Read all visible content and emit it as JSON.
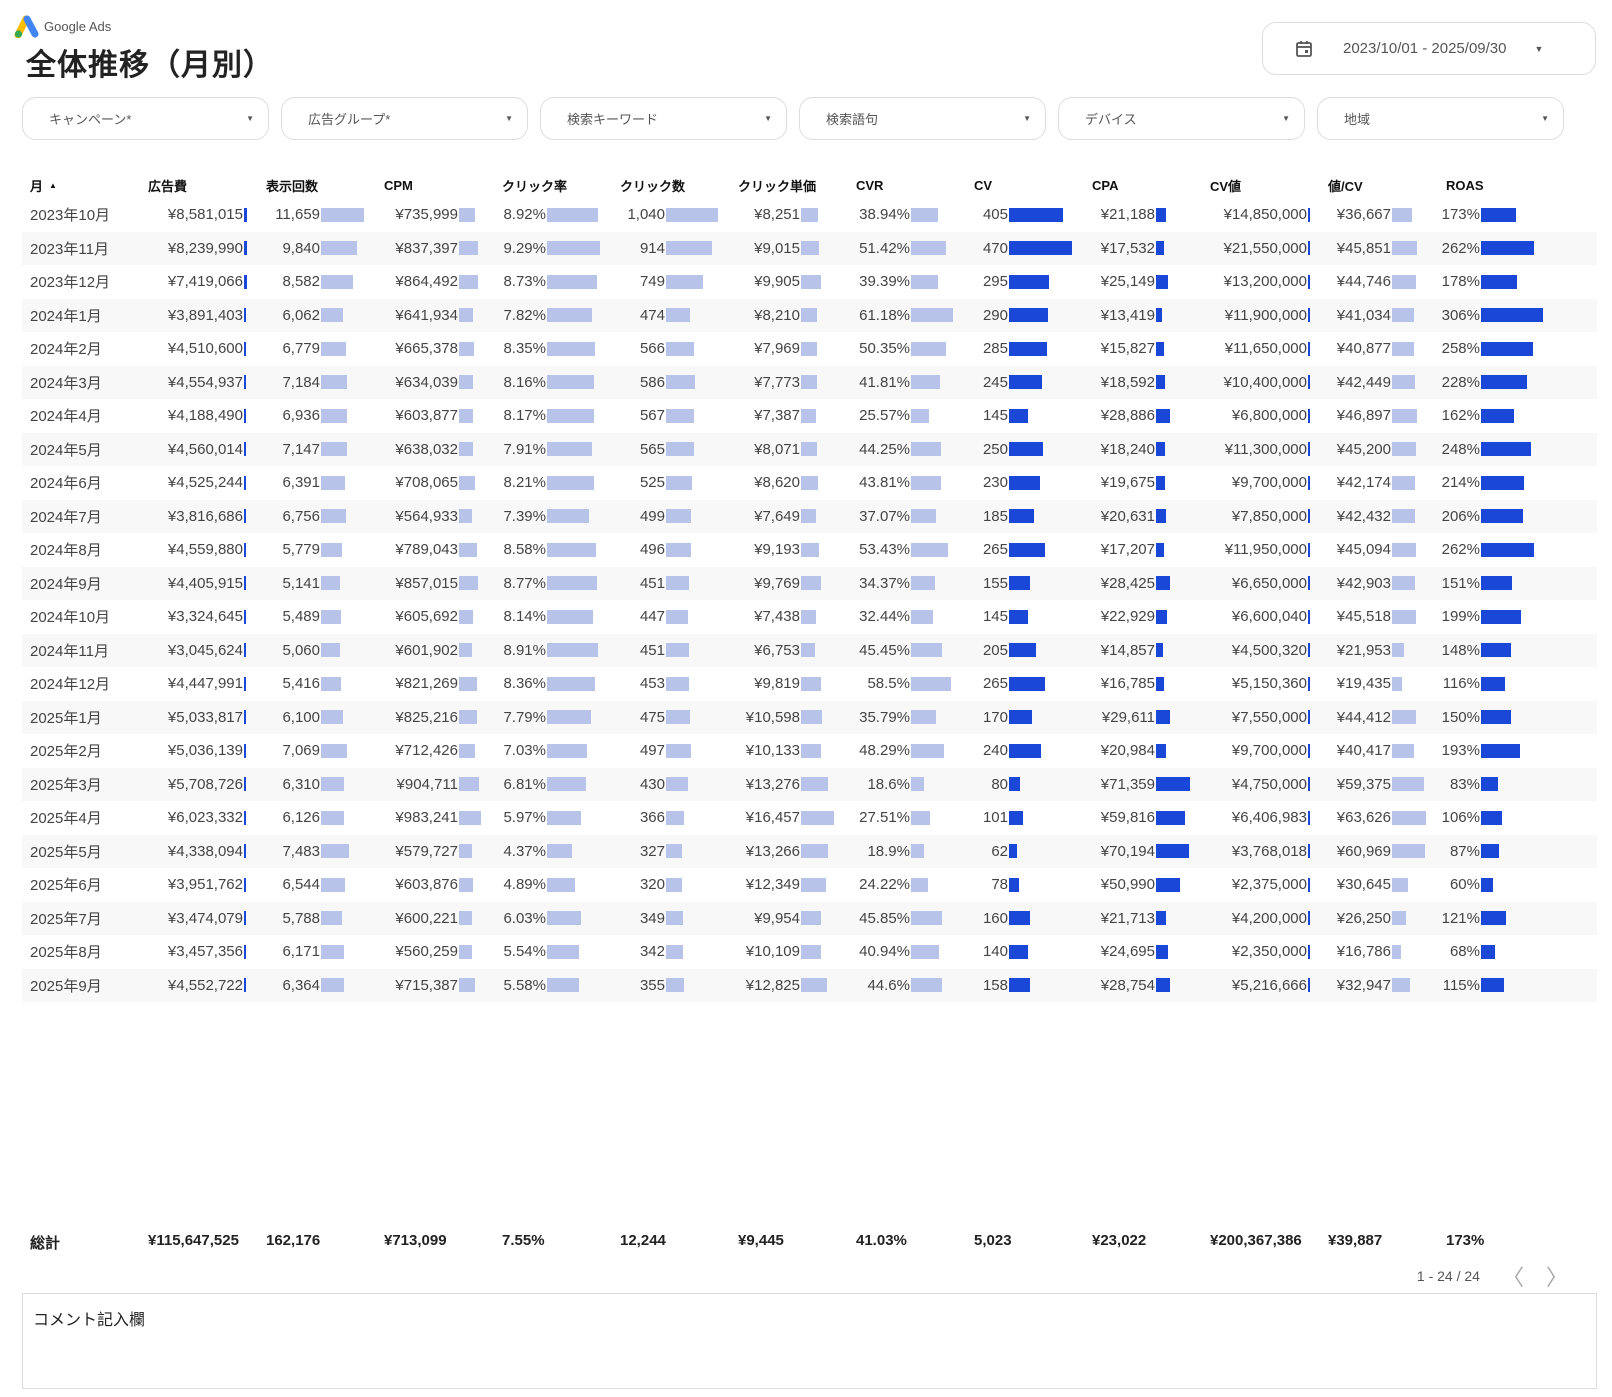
{
  "header": {
    "logo_text": "Google Ads",
    "title": "全体推移（月別）",
    "date_range": "2023/10/01 - 2025/09/30"
  },
  "filters": [
    "キャンペーン*",
    "広告グループ*",
    "検索キーワード",
    "検索語句",
    "デバイス",
    "地域"
  ],
  "columns": [
    "月",
    "広告費",
    "表示回数",
    "CPM",
    "クリック率",
    "クリック数",
    "クリック単価",
    "CVR",
    "CV",
    "CPA",
    "CV値",
    "値/CV",
    "ROAS"
  ],
  "sort_indicator": "▲",
  "bar_colors": {
    "light": "#b8c3ea",
    "dark": "#1a47d8"
  },
  "rows": [
    [
      "2023年10月",
      "¥8,581,015",
      "11,659",
      "¥735,999",
      "8.92%",
      "1,040",
      "¥8,251",
      "38.94%",
      "405",
      "¥21,188",
      "¥14,850,000",
      "¥36,667",
      "173%"
    ],
    [
      "2023年11月",
      "¥8,239,990",
      "9,840",
      "¥837,397",
      "9.29%",
      "914",
      "¥9,015",
      "51.42%",
      "470",
      "¥17,532",
      "¥21,550,000",
      "¥45,851",
      "262%"
    ],
    [
      "2023年12月",
      "¥7,419,066",
      "8,582",
      "¥864,492",
      "8.73%",
      "749",
      "¥9,905",
      "39.39%",
      "295",
      "¥25,149",
      "¥13,200,000",
      "¥44,746",
      "178%"
    ],
    [
      "2024年1月",
      "¥3,891,403",
      "6,062",
      "¥641,934",
      "7.82%",
      "474",
      "¥8,210",
      "61.18%",
      "290",
      "¥13,419",
      "¥11,900,000",
      "¥41,034",
      "306%"
    ],
    [
      "2024年2月",
      "¥4,510,600",
      "6,779",
      "¥665,378",
      "8.35%",
      "566",
      "¥7,969",
      "50.35%",
      "285",
      "¥15,827",
      "¥11,650,000",
      "¥40,877",
      "258%"
    ],
    [
      "2024年3月",
      "¥4,554,937",
      "7,184",
      "¥634,039",
      "8.16%",
      "586",
      "¥7,773",
      "41.81%",
      "245",
      "¥18,592",
      "¥10,400,000",
      "¥42,449",
      "228%"
    ],
    [
      "2024年4月",
      "¥4,188,490",
      "6,936",
      "¥603,877",
      "8.17%",
      "567",
      "¥7,387",
      "25.57%",
      "145",
      "¥28,886",
      "¥6,800,000",
      "¥46,897",
      "162%"
    ],
    [
      "2024年5月",
      "¥4,560,014",
      "7,147",
      "¥638,032",
      "7.91%",
      "565",
      "¥8,071",
      "44.25%",
      "250",
      "¥18,240",
      "¥11,300,000",
      "¥45,200",
      "248%"
    ],
    [
      "2024年6月",
      "¥4,525,244",
      "6,391",
      "¥708,065",
      "8.21%",
      "525",
      "¥8,620",
      "43.81%",
      "230",
      "¥19,675",
      "¥9,700,000",
      "¥42,174",
      "214%"
    ],
    [
      "2024年7月",
      "¥3,816,686",
      "6,756",
      "¥564,933",
      "7.39%",
      "499",
      "¥7,649",
      "37.07%",
      "185",
      "¥20,631",
      "¥7,850,000",
      "¥42,432",
      "206%"
    ],
    [
      "2024年8月",
      "¥4,559,880",
      "5,779",
      "¥789,043",
      "8.58%",
      "496",
      "¥9,193",
      "53.43%",
      "265",
      "¥17,207",
      "¥11,950,000",
      "¥45,094",
      "262%"
    ],
    [
      "2024年9月",
      "¥4,405,915",
      "5,141",
      "¥857,015",
      "8.77%",
      "451",
      "¥9,769",
      "34.37%",
      "155",
      "¥28,425",
      "¥6,650,000",
      "¥42,903",
      "151%"
    ],
    [
      "2024年10月",
      "¥3,324,645",
      "5,489",
      "¥605,692",
      "8.14%",
      "447",
      "¥7,438",
      "32.44%",
      "145",
      "¥22,929",
      "¥6,600,040",
      "¥45,518",
      "199%"
    ],
    [
      "2024年11月",
      "¥3,045,624",
      "5,060",
      "¥601,902",
      "8.91%",
      "451",
      "¥6,753",
      "45.45%",
      "205",
      "¥14,857",
      "¥4,500,320",
      "¥21,953",
      "148%"
    ],
    [
      "2024年12月",
      "¥4,447,991",
      "5,416",
      "¥821,269",
      "8.36%",
      "453",
      "¥9,819",
      "58.5%",
      "265",
      "¥16,785",
      "¥5,150,360",
      "¥19,435",
      "116%"
    ],
    [
      "2025年1月",
      "¥5,033,817",
      "6,100",
      "¥825,216",
      "7.79%",
      "475",
      "¥10,598",
      "35.79%",
      "170",
      "¥29,611",
      "¥7,550,000",
      "¥44,412",
      "150%"
    ],
    [
      "2025年2月",
      "¥5,036,139",
      "7,069",
      "¥712,426",
      "7.03%",
      "497",
      "¥10,133",
      "48.29%",
      "240",
      "¥20,984",
      "¥9,700,000",
      "¥40,417",
      "193%"
    ],
    [
      "2025年3月",
      "¥5,708,726",
      "6,310",
      "¥904,711",
      "6.81%",
      "430",
      "¥13,276",
      "18.6%",
      "80",
      "¥71,359",
      "¥4,750,000",
      "¥59,375",
      "83%"
    ],
    [
      "2025年4月",
      "¥6,023,332",
      "6,126",
      "¥983,241",
      "5.97%",
      "366",
      "¥16,457",
      "27.51%",
      "101",
      "¥59,816",
      "¥6,406,983",
      "¥63,626",
      "106%"
    ],
    [
      "2025年5月",
      "¥4,338,094",
      "7,483",
      "¥579,727",
      "4.37%",
      "327",
      "¥13,266",
      "18.9%",
      "62",
      "¥70,194",
      "¥3,768,018",
      "¥60,969",
      "87%"
    ],
    [
      "2025年6月",
      "¥3,951,762",
      "6,544",
      "¥603,876",
      "4.89%",
      "320",
      "¥12,349",
      "24.22%",
      "78",
      "¥50,990",
      "¥2,375,000",
      "¥30,645",
      "60%"
    ],
    [
      "2025年7月",
      "¥3,474,079",
      "5,788",
      "¥600,221",
      "6.03%",
      "349",
      "¥9,954",
      "45.85%",
      "160",
      "¥21,713",
      "¥4,200,000",
      "¥26,250",
      "121%"
    ],
    [
      "2025年8月",
      "¥3,457,356",
      "6,171",
      "¥560,259",
      "5.54%",
      "342",
      "¥10,109",
      "40.94%",
      "140",
      "¥24,695",
      "¥2,350,000",
      "¥16,786",
      "68%"
    ],
    [
      "2025年9月",
      "¥4,552,722",
      "6,364",
      "¥715,387",
      "5.58%",
      "355",
      "¥12,825",
      "44.6%",
      "158",
      "¥28,754",
      "¥5,216,666",
      "¥32,947",
      "115%"
    ]
  ],
  "totals": [
    "総計",
    "¥115,647,525",
    "162,176",
    "¥713,099",
    "7.55%",
    "12,244",
    "¥9,445",
    "41.03%",
    "5,023",
    "¥23,022",
    "¥200,367,386",
    "¥39,887",
    "173%"
  ],
  "pagination": {
    "range": "1 - 24 / 24"
  },
  "comment": {
    "label": "コメント記入欄"
  }
}
